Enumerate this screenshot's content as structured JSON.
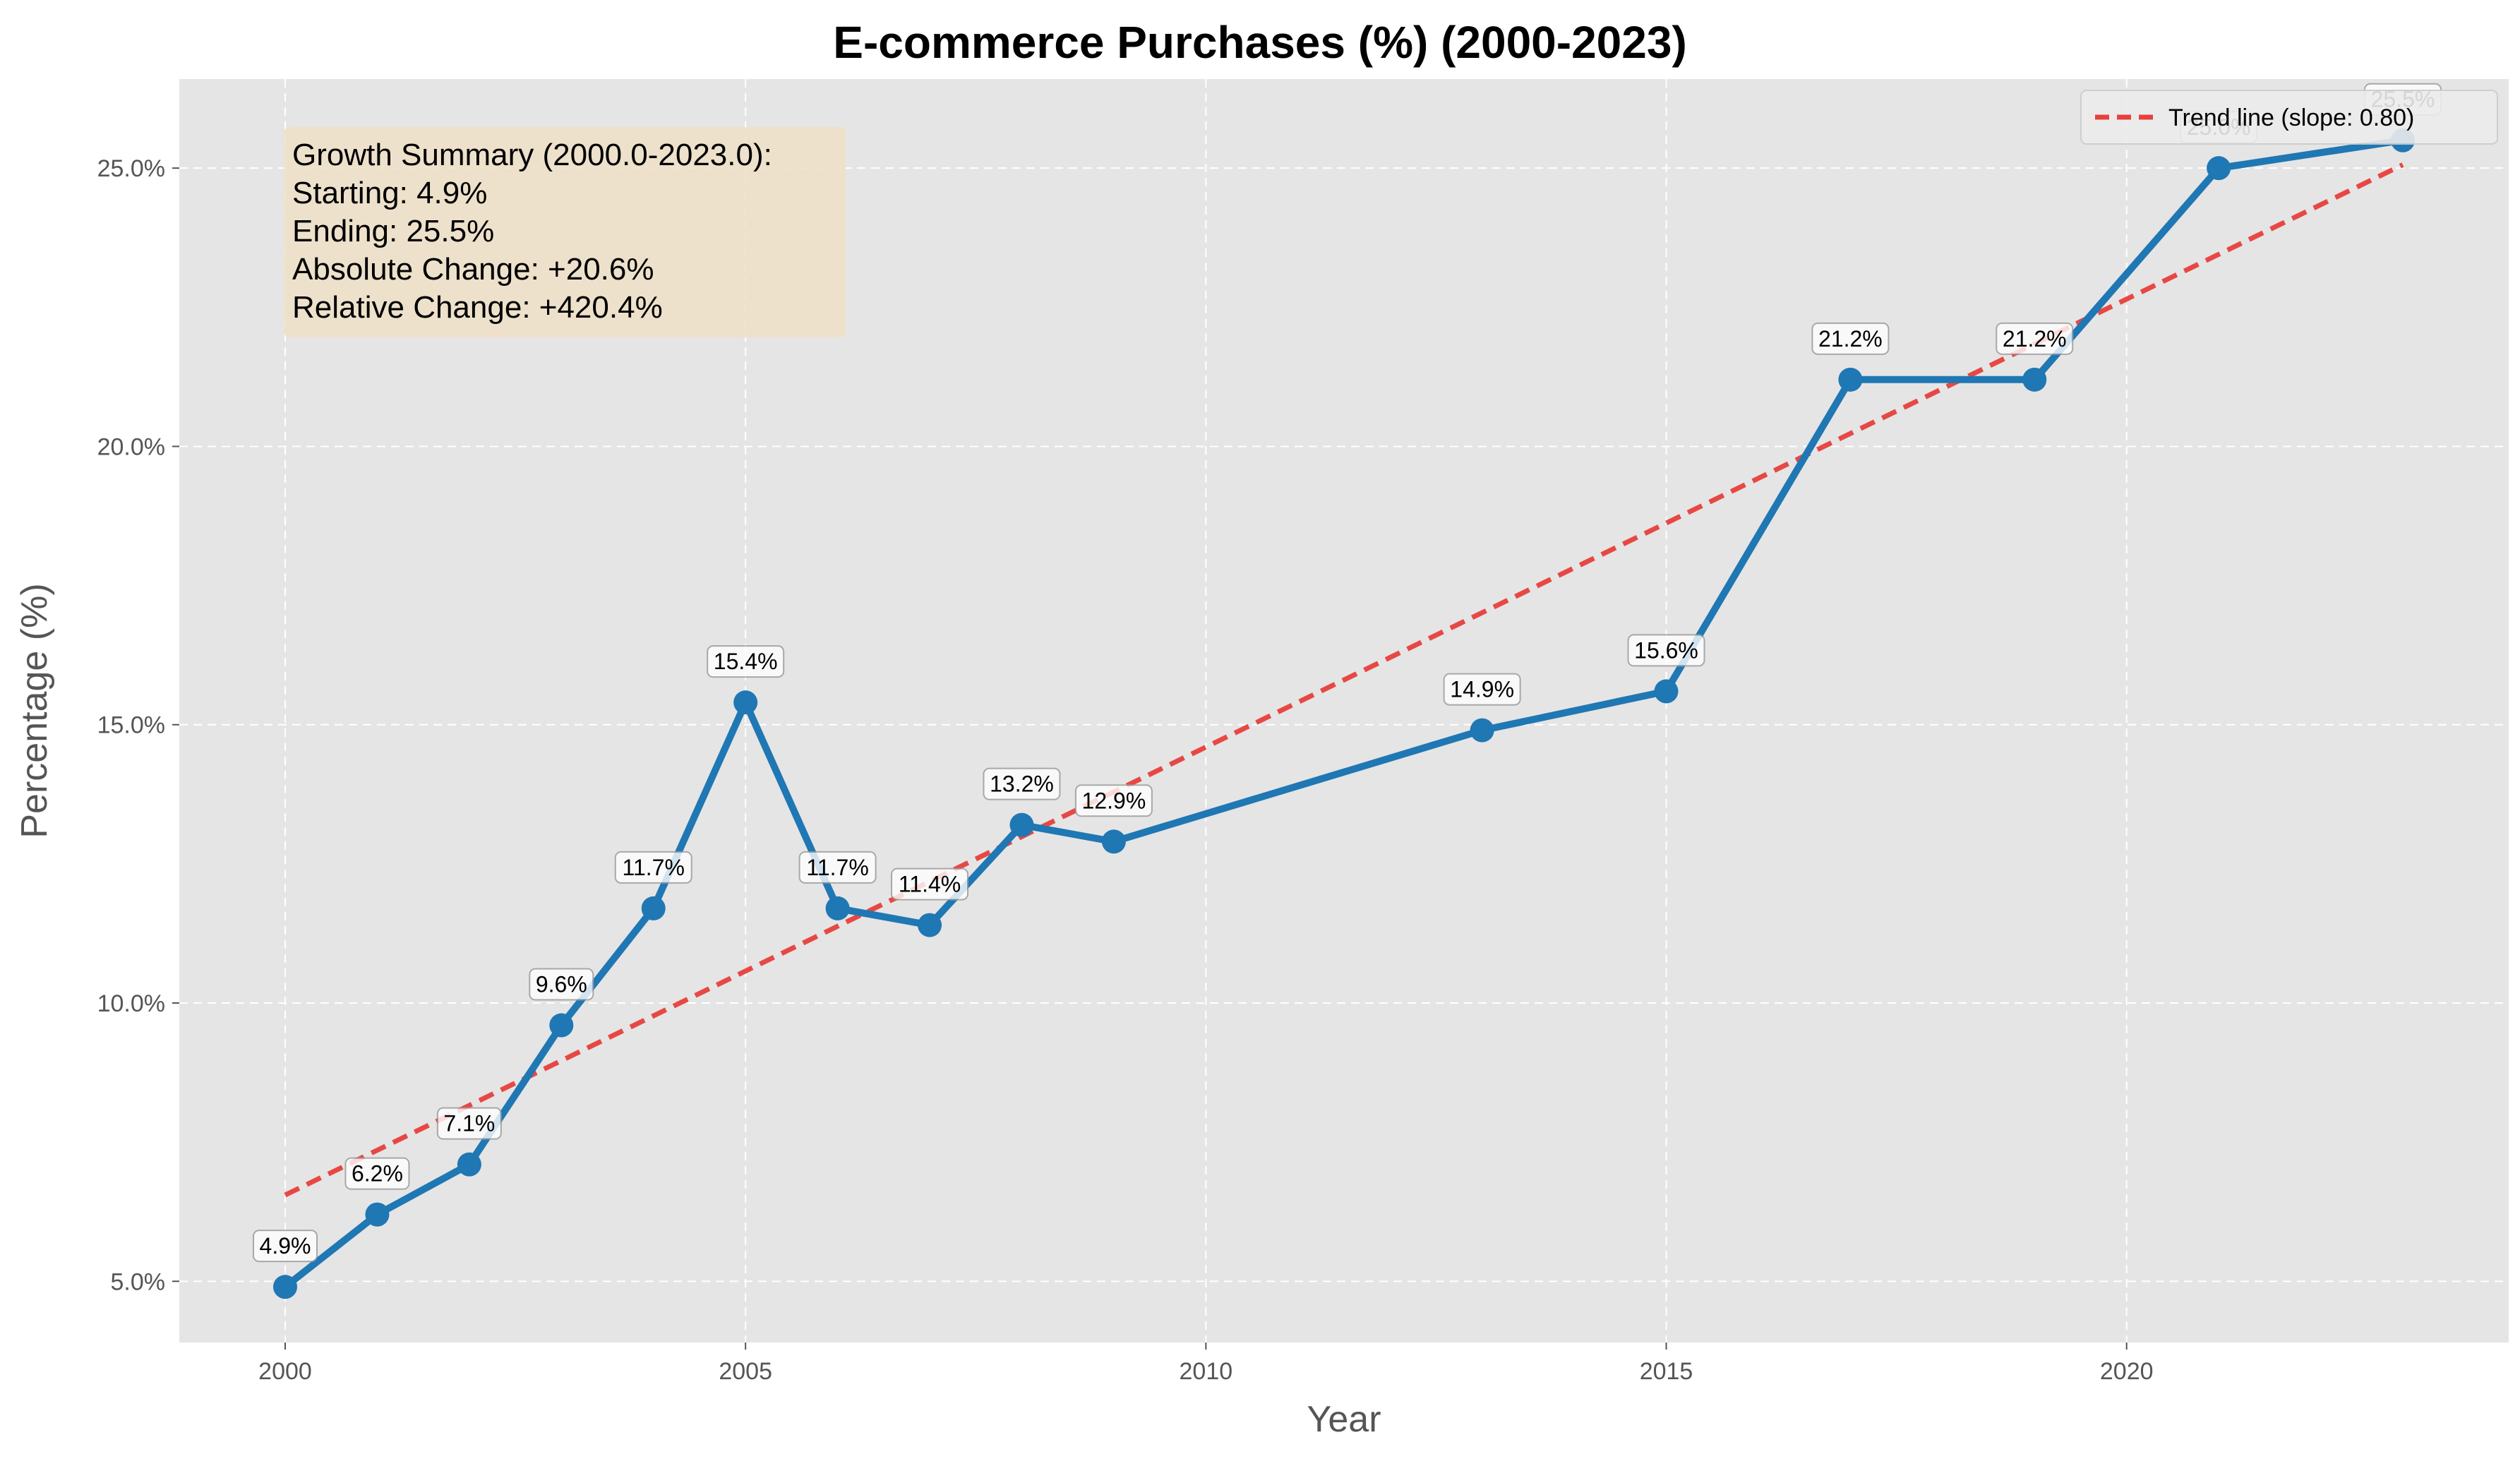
{
  "colors": {
    "page_background": "#ffffff",
    "plot_background": "#e5e5e5",
    "grid": "#ffffff",
    "series": "#1f77b4",
    "trend": "#e8403c",
    "label_box_fill": "#ffffff",
    "label_box_stroke": "#999999",
    "summary_box": "#efe0c7",
    "legend_fill": "#ececec"
  },
  "chart_data": {
    "type": "line",
    "title": "E-commerce Purchases (%) (2000-2023)",
    "xlabel": "Year",
    "ylabel": "Percentage (%)",
    "xlim": [
      1998.85,
      2024.15
    ],
    "ylim": [
      3.9,
      26.6
    ],
    "grid": true,
    "x_ticks": [
      2000,
      2005,
      2010,
      2015,
      2020
    ],
    "x_tick_labels": [
      "2000",
      "2005",
      "2010",
      "2015",
      "2020"
    ],
    "y_ticks": [
      5,
      10,
      15,
      20,
      25
    ],
    "y_tick_labels": [
      "5.0%",
      "10.0%",
      "15.0%",
      "20.0%",
      "25.0%"
    ],
    "series": [
      {
        "x": [
          2000,
          2001,
          2002,
          2003,
          2004,
          2005,
          2006,
          2007,
          2008,
          2009,
          2013,
          2015,
          2017,
          2019,
          2021,
          2023
        ],
        "values": [
          4.9,
          6.2,
          7.1,
          9.6,
          11.7,
          15.4,
          11.7,
          11.4,
          13.2,
          12.9,
          14.9,
          15.6,
          21.2,
          21.2,
          25.0,
          25.5
        ],
        "labels": [
          "4.9%",
          "6.2%",
          "7.1%",
          "9.6%",
          "11.7%",
          "15.4%",
          "11.7%",
          "11.4%",
          "13.2%",
          "12.9%",
          "14.9%",
          "15.6%",
          "21.2%",
          "21.2%",
          "25.0%",
          "25.5%"
        ]
      }
    ],
    "trend_line": {
      "name": "Trend line (slope: 0.80)",
      "x": [
        2000,
        2023
      ],
      "values": [
        6.55,
        25.06
      ]
    },
    "legend": {
      "placement": "top-right",
      "entries": [
        "Trend line (slope: 0.80)"
      ]
    },
    "annotation": {
      "placement": "top-left",
      "lines": [
        "Growth Summary (2000.0-2023.0):",
        "Starting: 4.9%",
        "Ending: 25.5%",
        "Absolute Change: +20.6%",
        "Relative Change: +420.4%"
      ]
    }
  }
}
